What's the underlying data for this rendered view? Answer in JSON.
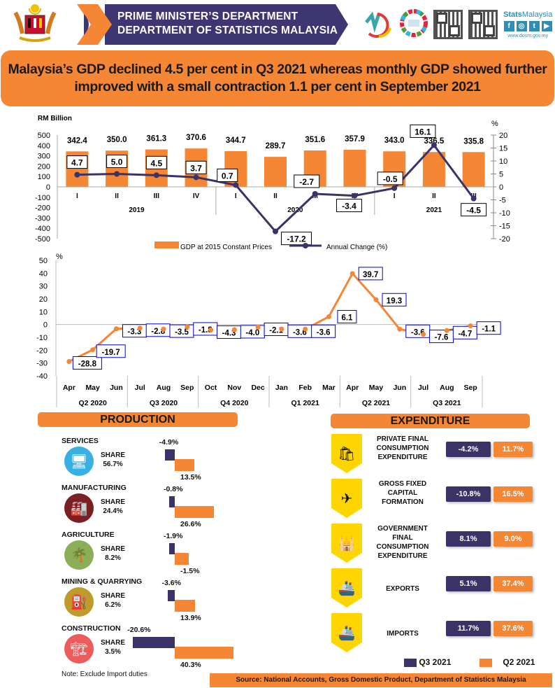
{
  "header": {
    "line1": "PRIME MINISTER’S DEPARTMENT",
    "line2": "DEPARTMENT OF STATISTICS MALAYSIA",
    "brand_bold": "Stats",
    "brand_rest": "Malaysia",
    "social": [
      "f",
      "◎",
      "t",
      "▶"
    ],
    "url": "www.dosm.gov.my"
  },
  "headline": "Malaysia’s GDP declined 4.5 per cent in Q3 2021 whereas monthly GDP showed further improved with a small contraction 1.1 per cent in September 2021",
  "chart_data": [
    {
      "type": "bar+line",
      "title": "",
      "ylabel": "RM Billion",
      "y2label": "%",
      "ylim": [
        -500,
        500
      ],
      "y2lim": [
        -20,
        20
      ],
      "yticks": [
        500,
        400,
        300,
        200,
        100,
        0,
        -100,
        -200,
        -300,
        -400,
        -500
      ],
      "y2ticks": [
        20,
        15,
        10,
        5,
        0,
        -5,
        -10,
        -15,
        -20
      ],
      "categories": [
        "I",
        "II",
        "III",
        "IV",
        "I",
        "II",
        "III",
        "IV",
        "I",
        "II",
        "III"
      ],
      "groups": [
        {
          "label": "2019",
          "count": 4
        },
        {
          "label": "2020",
          "count": 4
        },
        {
          "label": "2021",
          "count": 3
        }
      ],
      "series": [
        {
          "name": "GDP at 2015 Constant Prices",
          "type": "bar",
          "axis": "left",
          "color": "#f58634",
          "values": [
            342.4,
            350.0,
            361.3,
            370.6,
            344.7,
            289.7,
            351.6,
            357.9,
            343.0,
            336.5,
            335.8
          ]
        },
        {
          "name": "Annual Change (%)",
          "type": "line",
          "axis": "right",
          "color": "#3b3368",
          "values": [
            4.7,
            5.0,
            4.5,
            3.7,
            0.7,
            -17.2,
            -2.7,
            -3.4,
            -0.5,
            16.1,
            -4.5
          ]
        }
      ],
      "legend": "bottom"
    },
    {
      "type": "line",
      "title": "",
      "ylabel": "%",
      "ylim": [
        -40,
        50
      ],
      "yticks": [
        50,
        40,
        30,
        20,
        10,
        0,
        -10,
        -20,
        -30,
        -40
      ],
      "categories": [
        "Apr",
        "May",
        "Jun",
        "Jul",
        "Aug",
        "Sep",
        "Oct",
        "Nov",
        "Dec",
        "Jan",
        "Feb",
        "Mar",
        "Apr",
        "May",
        "Jun",
        "Jul",
        "Aug",
        "Sep"
      ],
      "groups": [
        {
          "label": "Q2 2020",
          "count": 3
        },
        {
          "label": "Q3 2020",
          "count": 3
        },
        {
          "label": "Q4 2020",
          "count": 3
        },
        {
          "label": "Q1 2021",
          "count": 3
        },
        {
          "label": "Q2 2021",
          "count": 3
        },
        {
          "label": "Q3 2021",
          "count": 3
        }
      ],
      "series": [
        {
          "name": "Monthly GDP annual change (%)",
          "color": "#f58634",
          "values": [
            -28.8,
            -19.7,
            -3.3,
            -2.8,
            -3.5,
            -1.8,
            -4.3,
            -4.0,
            -2.1,
            -3.6,
            -3.6,
            6.1,
            39.7,
            19.3,
            -3.6,
            -7.6,
            -4.7,
            -1.1
          ]
        }
      ]
    },
    {
      "type": "bar",
      "title": "PRODUCTION",
      "orientation": "horizontal",
      "categories": [
        "SERVICES",
        "MANUFACTURING",
        "AGRICULTURE",
        "MINING & QUARRYING",
        "CONSTRUCTION"
      ],
      "shares": [
        "56.7%",
        "24.4%",
        "8.2%",
        "6.2%",
        "3.5%"
      ],
      "series": [
        {
          "name": "Q3 2021",
          "color": "#3b3368",
          "values": [
            -4.9,
            -0.8,
            -1.9,
            -3.6,
            -20.6
          ]
        },
        {
          "name": "Q2 2021",
          "color": "#f58634",
          "values": [
            13.5,
            26.6,
            -1.5,
            13.9,
            40.3
          ]
        }
      ],
      "share_label": "SHARE",
      "note": "Note: Exclude Import duties"
    },
    {
      "type": "table",
      "title": "EXPENDITURE",
      "categories": [
        "PRIVATE FINAL CONSUMPTION EXPENDITURE",
        "GROSS FIXED CAPITAL FORMATION",
        "GOVERNMENT FINAL CONSUMPTION EXPENDITURE",
        "EXPORTS",
        "IMPORTS"
      ],
      "series": [
        {
          "name": "Q3 2021",
          "color": "#3b3368",
          "values": [
            "-4.2%",
            "-10.8%",
            "8.1%",
            "5.1%",
            "11.7%"
          ]
        },
        {
          "name": "Q2 2021",
          "color": "#f58634",
          "values": [
            "11.7%",
            "16.5%",
            "9.0%",
            "37.4%",
            "37.6%"
          ]
        }
      ],
      "legend": [
        "Q3 2021",
        "Q2 2021"
      ]
    }
  ],
  "source": "Source: National Accounts, Gross Domestic Product, Department of Statistics Malaysia"
}
